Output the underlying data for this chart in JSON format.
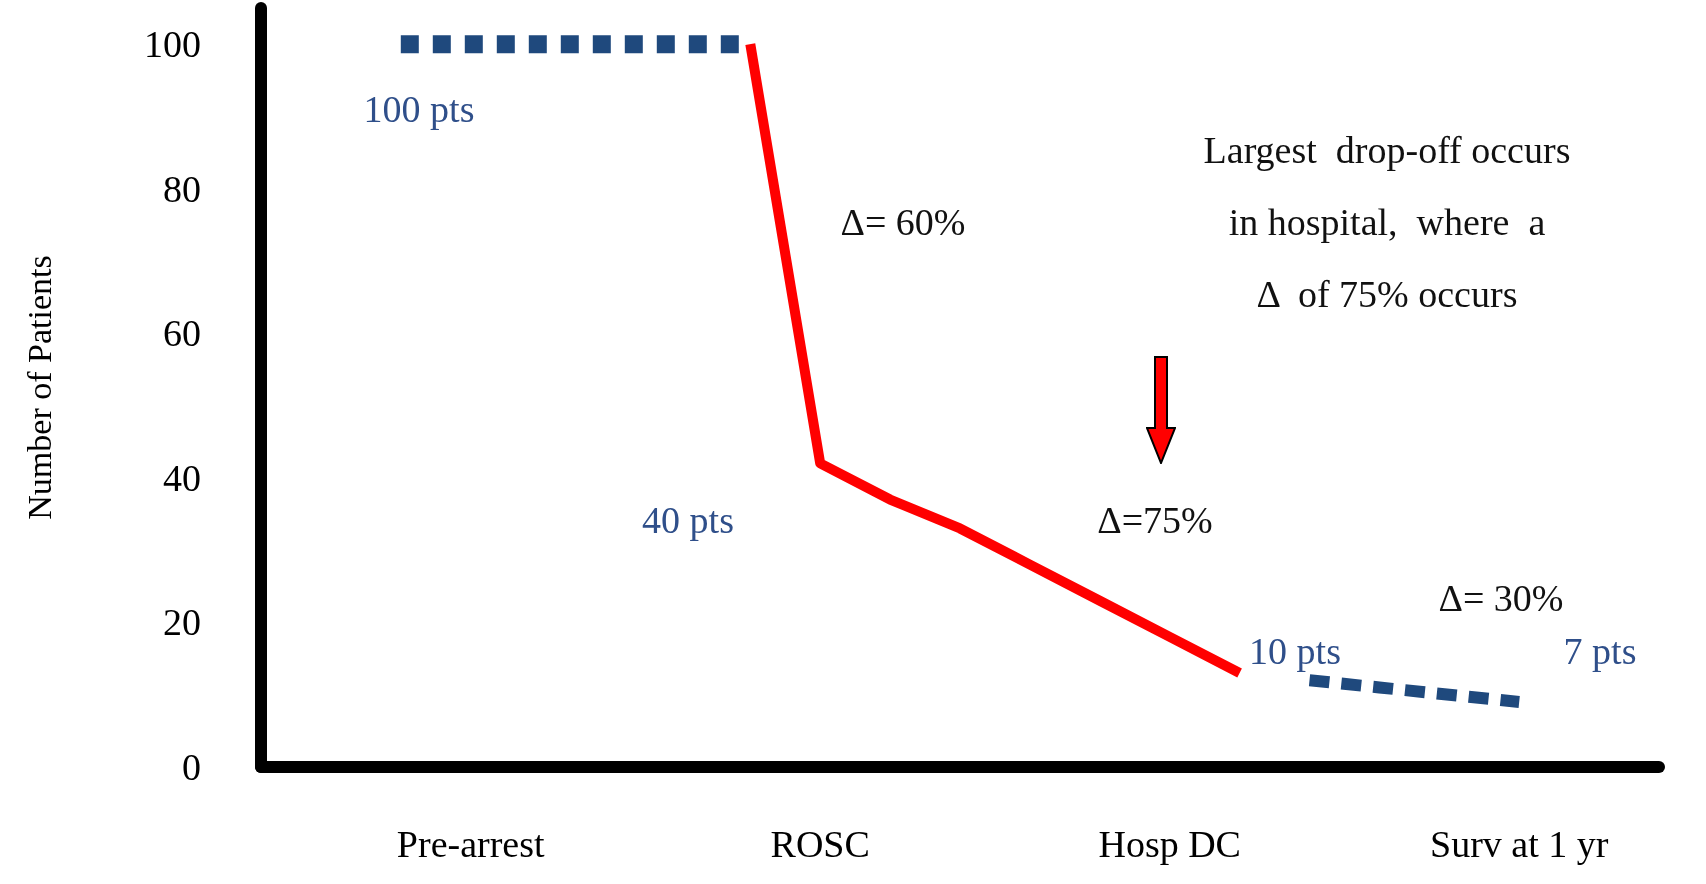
{
  "chart_data": {
    "type": "line",
    "ylabel": "Number of Patients",
    "ylim": [
      0,
      105
    ],
    "categories": [
      null,
      null,
      null,
      "Pre-arrest",
      null,
      null,
      null,
      null,
      "ROSC",
      null,
      null,
      null,
      null,
      "Hosp DC",
      null,
      null,
      null,
      null,
      "Surv at 1 yr",
      null,
      null
    ],
    "yticks": [
      0,
      20,
      40,
      60,
      80,
      100
    ],
    "grid": false,
    "marker": "none",
    "series": [
      {
        "color": "#1f497d",
        "line_style": "dotted",
        "values": [
          null,
          null,
          100,
          100,
          100,
          100,
          100,
          100,
          null,
          null,
          null,
          null,
          null,
          null,
          null,
          null,
          null,
          null,
          null,
          null,
          null
        ]
      },
      {
        "color": "#ff0000",
        "line_style": "solid",
        "values": [
          null,
          null,
          null,
          null,
          null,
          null,
          null,
          100,
          42,
          37,
          33,
          28,
          23,
          18,
          13,
          null,
          null,
          null,
          null,
          null,
          null
        ]
      },
      {
        "color": "#1f497d",
        "line_style": "dashed",
        "values": [
          null,
          null,
          null,
          null,
          null,
          null,
          null,
          null,
          null,
          null,
          null,
          null,
          null,
          null,
          null,
          12,
          11,
          10,
          9,
          null,
          null
        ]
      }
    ],
    "annotations": [
      "100 pts",
      "40 pts",
      "10 pts",
      "7 pts",
      "Δ= 60%",
      "Δ=75%",
      "Δ= 30%",
      "Largest  drop-off occurs\nin hospital,  where  a\nΔ  of 75% occurs"
    ]
  }
}
